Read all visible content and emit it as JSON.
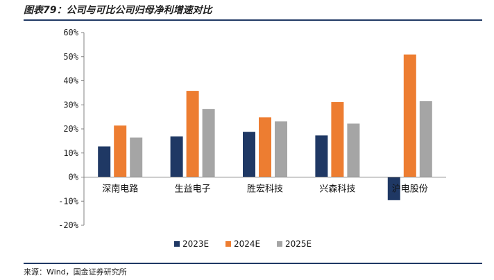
{
  "title": "图表79：公司与可比公司归母净利增速对比",
  "source": "来源：Wind，国金证券研究所",
  "chart_data": {
    "type": "bar",
    "categories": [
      "深南电路",
      "生益电子",
      "胜宏科技",
      "兴森科技",
      "沪电股份"
    ],
    "series": [
      {
        "name": "2023E",
        "color": "#1f3864",
        "values": [
          12.7,
          16.9,
          18.8,
          17.3,
          -9.6
        ]
      },
      {
        "name": "2024E",
        "color": "#ed7d31",
        "values": [
          21.4,
          35.8,
          24.8,
          31.2,
          50.9
        ]
      },
      {
        "name": "2025E",
        "color": "#a5a5a5",
        "values": [
          16.4,
          28.3,
          23.1,
          22.2,
          31.5
        ]
      }
    ],
    "ylim": [
      -20,
      60
    ],
    "yticks": [
      -20,
      -10,
      0,
      10,
      20,
      30,
      40,
      50,
      60
    ],
    "ytick_labels": [
      "-20%",
      "-10%",
      "0%",
      "10%",
      "20%",
      "30%",
      "40%",
      "50%",
      "60%"
    ],
    "legend_position": "bottom",
    "grid": false
  }
}
